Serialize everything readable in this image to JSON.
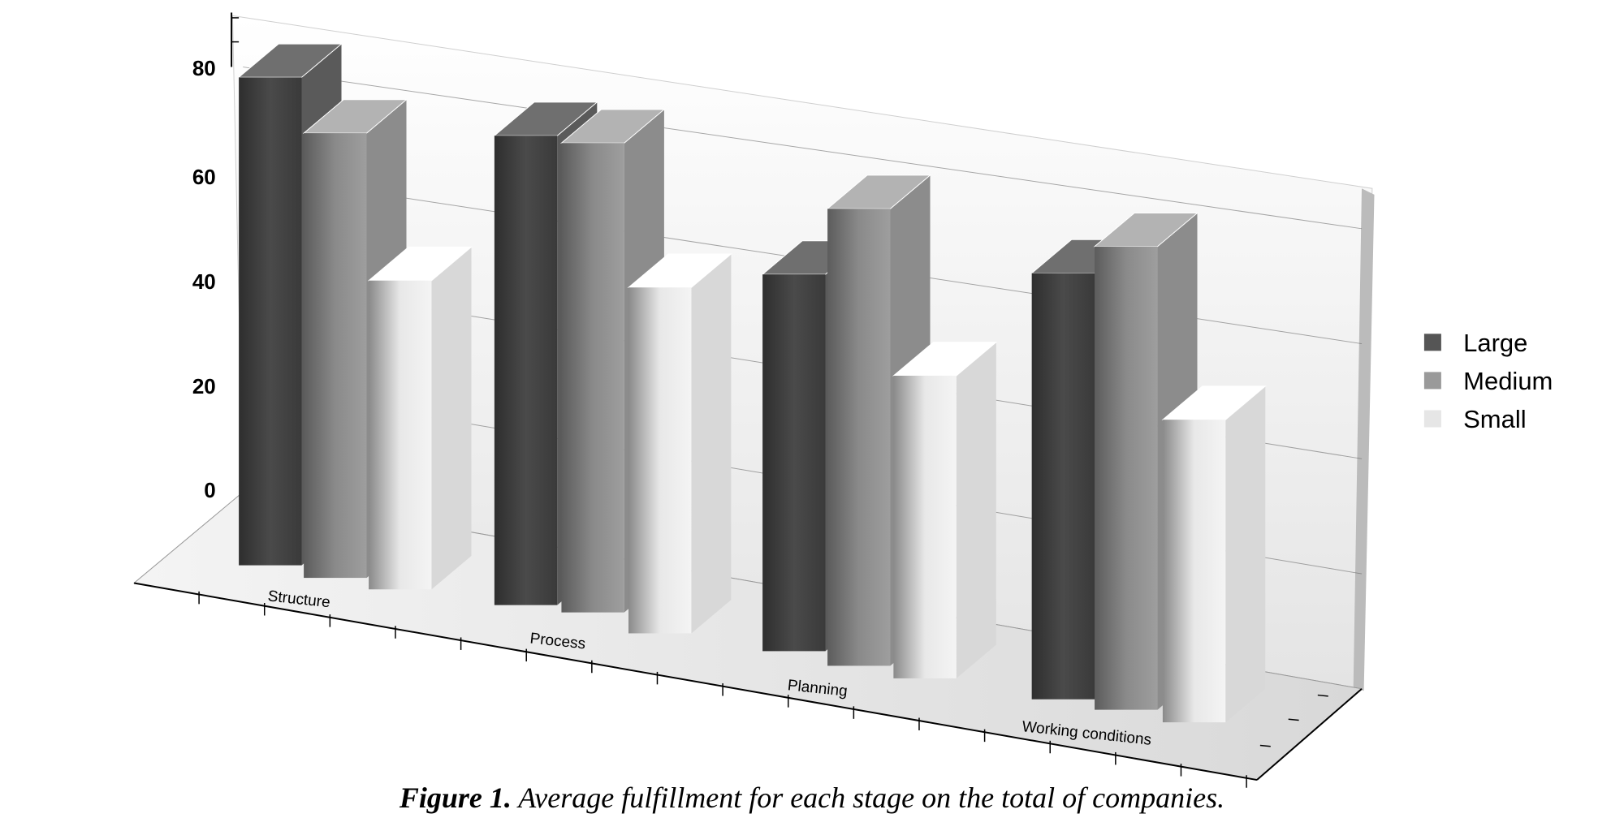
{
  "chart_data": {
    "type": "bar",
    "style": "3d-grouped",
    "categories": [
      "Structure",
      "Process",
      "Planning",
      "Working conditions"
    ],
    "series": [
      {
        "name": "Large",
        "color": "#555555",
        "values": [
          79,
          76,
          61,
          69
        ]
      },
      {
        "name": "Medium",
        "color": "#9a9a9a",
        "values": [
          72,
          76,
          74,
          75
        ]
      },
      {
        "name": "Small",
        "color": "#e6e6e6",
        "values": [
          50,
          56,
          49,
          49
        ]
      }
    ],
    "yticks": [
      "0",
      "20",
      "40",
      "60",
      "80"
    ],
    "ylim": [
      0,
      90
    ],
    "grid": true,
    "legend": "right"
  },
  "caption": {
    "label": "Figure 1.",
    "text": " Average fulfillment for each stage on the total of companies."
  }
}
